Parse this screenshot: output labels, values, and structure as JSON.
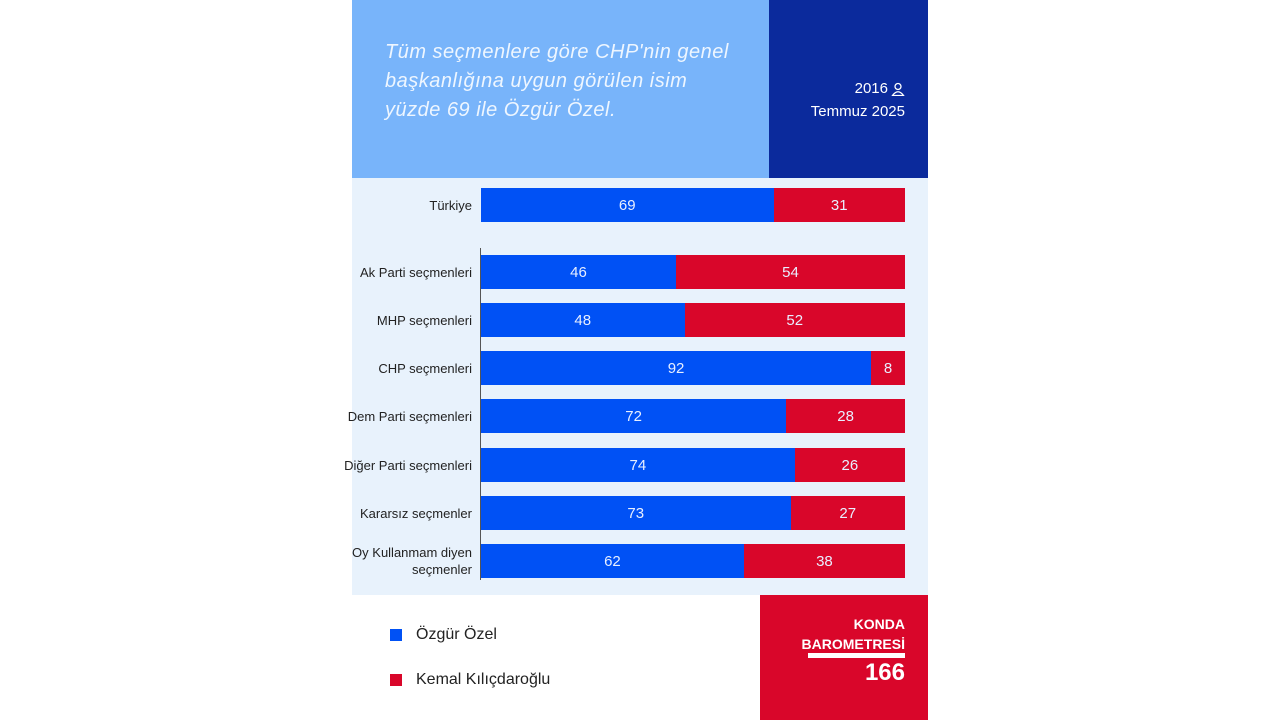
{
  "header": {
    "headline": "Tüm seçmenlere göre CHP'nin genel başkanlığına uygun görülen isim yüzde 69 ile Özgür Özel.",
    "sample": "2016",
    "sample_icon": "person-icon",
    "date": "Temmuz 2025"
  },
  "brand": {
    "line1": "KONDA",
    "line2": "BAROMETRESİ",
    "issue": "166"
  },
  "chart_data": {
    "type": "bar",
    "orientation": "horizontal",
    "stacked": true,
    "xlim": [
      0,
      100
    ],
    "categories": [
      "Türkiye",
      "Ak Parti seçmenleri",
      "MHP seçmenleri",
      "CHP seçmenleri",
      "Dem Parti seçmenleri",
      "Diğer Parti seçmenleri",
      "Kararsız seçmenler",
      "Oy Kullanmam diyen seçmenler"
    ],
    "series": [
      {
        "name": "Özgür Özel",
        "color": "#0051f5",
        "values": [
          69,
          46,
          48,
          92,
          72,
          74,
          73,
          62
        ]
      },
      {
        "name": "Kemal Kılıçdaroğlu",
        "color": "#d9062a",
        "values": [
          31,
          54,
          52,
          8,
          28,
          26,
          27,
          38
        ]
      }
    ],
    "legend": "bottom-left"
  }
}
